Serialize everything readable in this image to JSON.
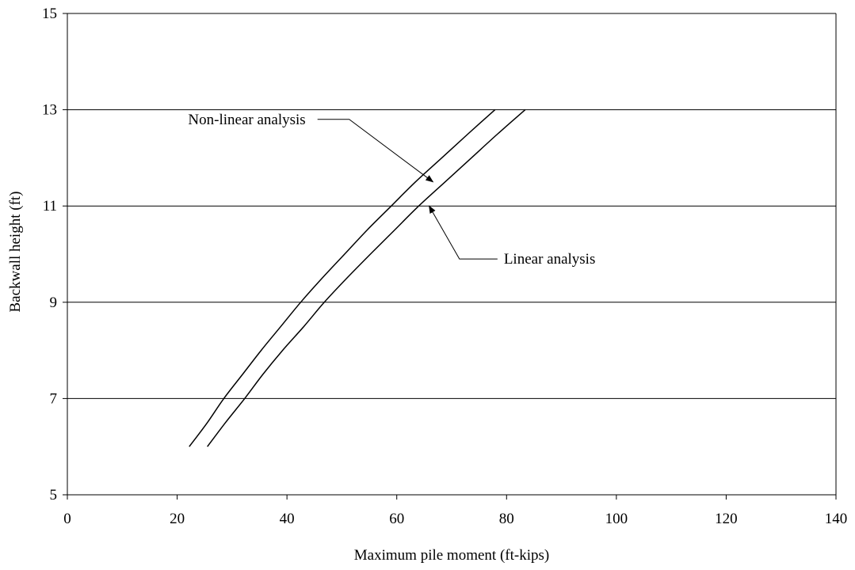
{
  "chart_data": {
    "type": "line",
    "title": "",
    "xlabel": "Maximum pile moment (ft-kips)",
    "ylabel": "Backwall height (ft)",
    "xlim": [
      0,
      140
    ],
    "ylim": [
      5,
      15
    ],
    "xticks": [
      0,
      20,
      40,
      60,
      80,
      100,
      120,
      140
    ],
    "yticks": [
      5,
      7,
      9,
      11,
      13,
      15
    ],
    "grid": "horizontal",
    "legend": "none",
    "series": [
      {
        "name": "Non-linear analysis",
        "color": "#000000",
        "points": [
          [
            22.2,
            6.0
          ],
          [
            25.5,
            6.5
          ],
          [
            28.5,
            7.0
          ],
          [
            31.9,
            7.5
          ],
          [
            35.3,
            8.0
          ],
          [
            38.9,
            8.5
          ],
          [
            42.5,
            9.0
          ],
          [
            46.4,
            9.5
          ],
          [
            50.5,
            10.0
          ],
          [
            54.6,
            10.5
          ],
          [
            59.0,
            11.0
          ],
          [
            63.4,
            11.5
          ],
          [
            68.2,
            12.0
          ],
          [
            73.0,
            12.5
          ],
          [
            77.9,
            13.0
          ]
        ]
      },
      {
        "name": "Linear analysis",
        "color": "#000000",
        "points": [
          [
            25.5,
            6.0
          ],
          [
            28.8,
            6.5
          ],
          [
            32.3,
            7.0
          ],
          [
            35.6,
            7.5
          ],
          [
            39.2,
            8.0
          ],
          [
            43.1,
            8.5
          ],
          [
            46.8,
            9.0
          ],
          [
            50.9,
            9.5
          ],
          [
            55.2,
            10.0
          ],
          [
            59.6,
            10.5
          ],
          [
            64.0,
            11.0
          ],
          [
            68.8,
            11.5
          ],
          [
            73.6,
            12.0
          ],
          [
            78.4,
            12.5
          ],
          [
            83.4,
            13.0
          ]
        ]
      }
    ],
    "annotations": [
      {
        "text": "Non-linear analysis",
        "target": [
          66.6,
          11.5
        ],
        "text_pos": [
          22,
          12.8
        ]
      },
      {
        "text": "Linear analysis",
        "target": [
          65.9,
          11.0
        ],
        "text_pos": [
          79.5,
          9.9
        ]
      }
    ]
  }
}
